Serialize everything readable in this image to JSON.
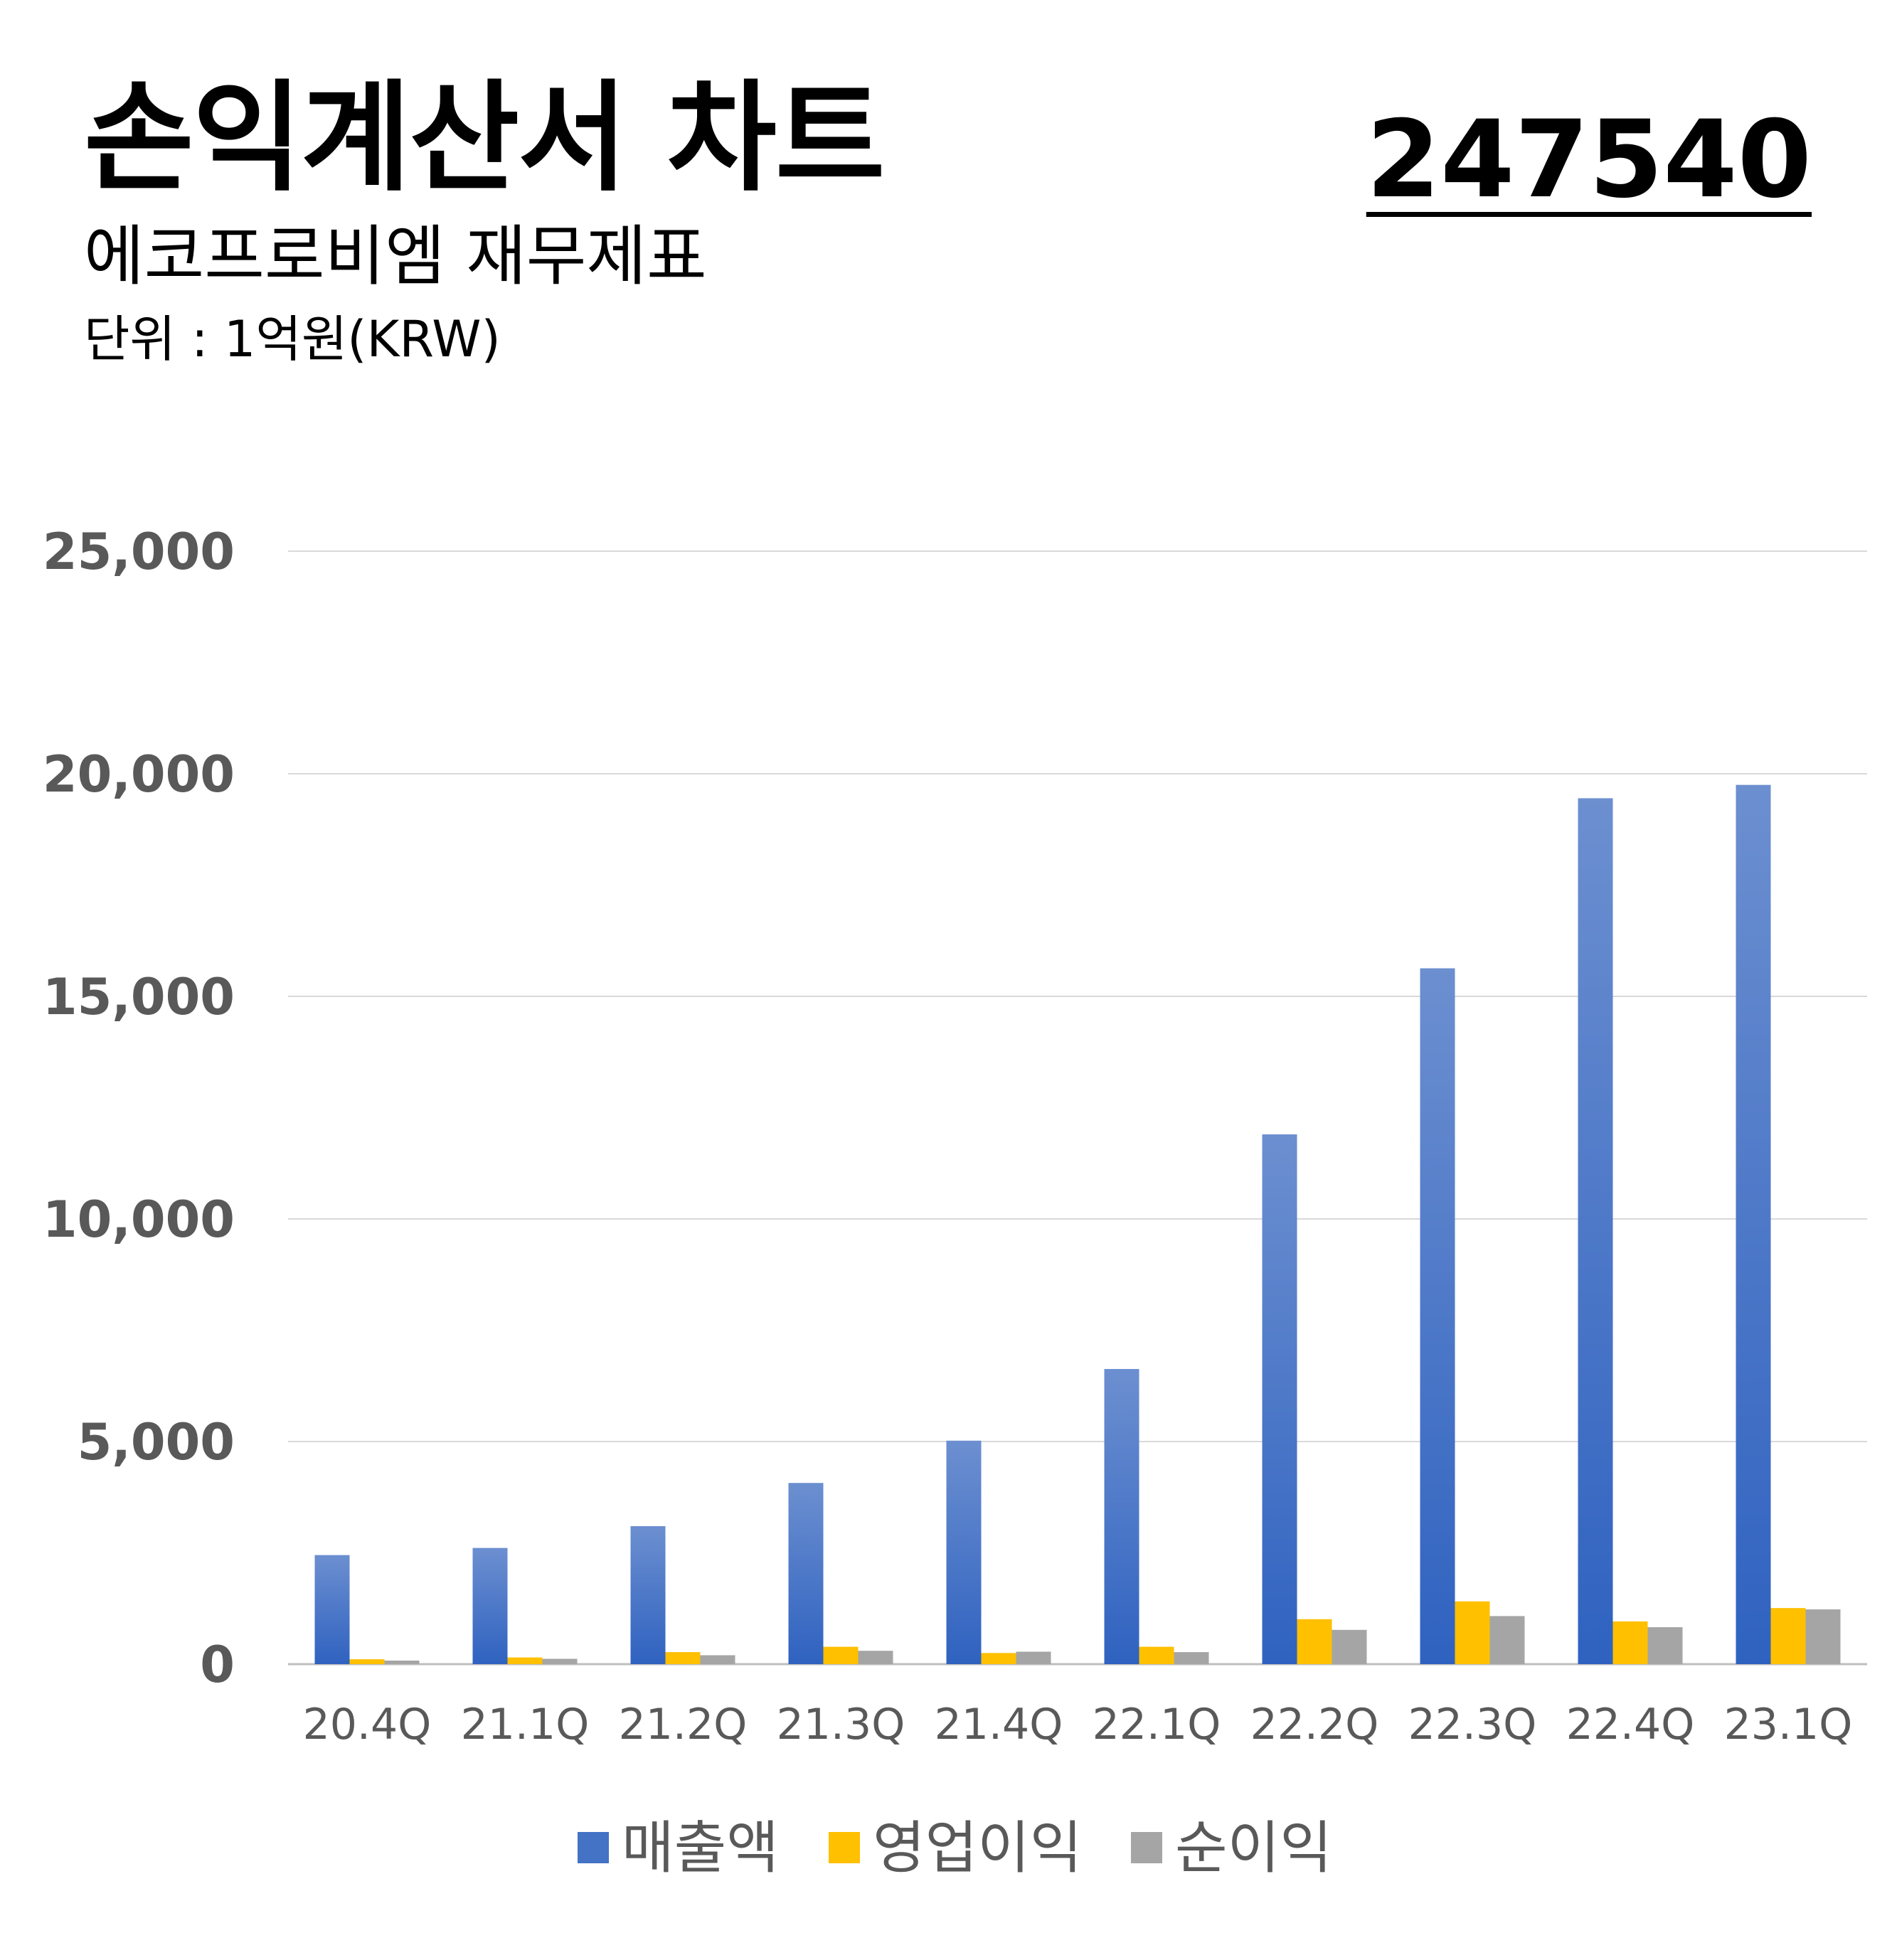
{
  "header": {
    "title": "손익계산서 차트",
    "subtitle": "에코프로비엠 재무제표",
    "unit": "단위 : 1억원(KRW)",
    "code": "247540"
  },
  "colors": {
    "revenue": "#4472C4",
    "operating_profit": "#FFC000",
    "net_profit": "#A5A5A5",
    "gridline": "#D9D9D9",
    "tick_text": "#595959"
  },
  "chart_data": {
    "type": "bar",
    "categories": [
      "20.4Q",
      "21.1Q",
      "21.2Q",
      "21.3Q",
      "21.4Q",
      "22.1Q",
      "22.2Q",
      "22.3Q",
      "22.4Q",
      "23.1Q"
    ],
    "series": [
      {
        "name": "매출액",
        "values": [
          2450,
          2610,
          3100,
          4070,
          5020,
          6630,
          11900,
          15630,
          19450,
          19750
        ]
      },
      {
        "name": "영업이익",
        "values": [
          110,
          150,
          270,
          390,
          250,
          390,
          1010,
          1410,
          960,
          1260
        ]
      },
      {
        "name": "순이익",
        "values": [
          80,
          120,
          200,
          300,
          280,
          270,
          770,
          1080,
          830,
          1230
        ]
      }
    ],
    "yticks": [
      "0",
      "5,000",
      "10,000",
      "15,000",
      "20,000",
      "25,000"
    ],
    "ylim": [
      0,
      25000
    ],
    "grid": true,
    "legend_position": "bottom"
  }
}
